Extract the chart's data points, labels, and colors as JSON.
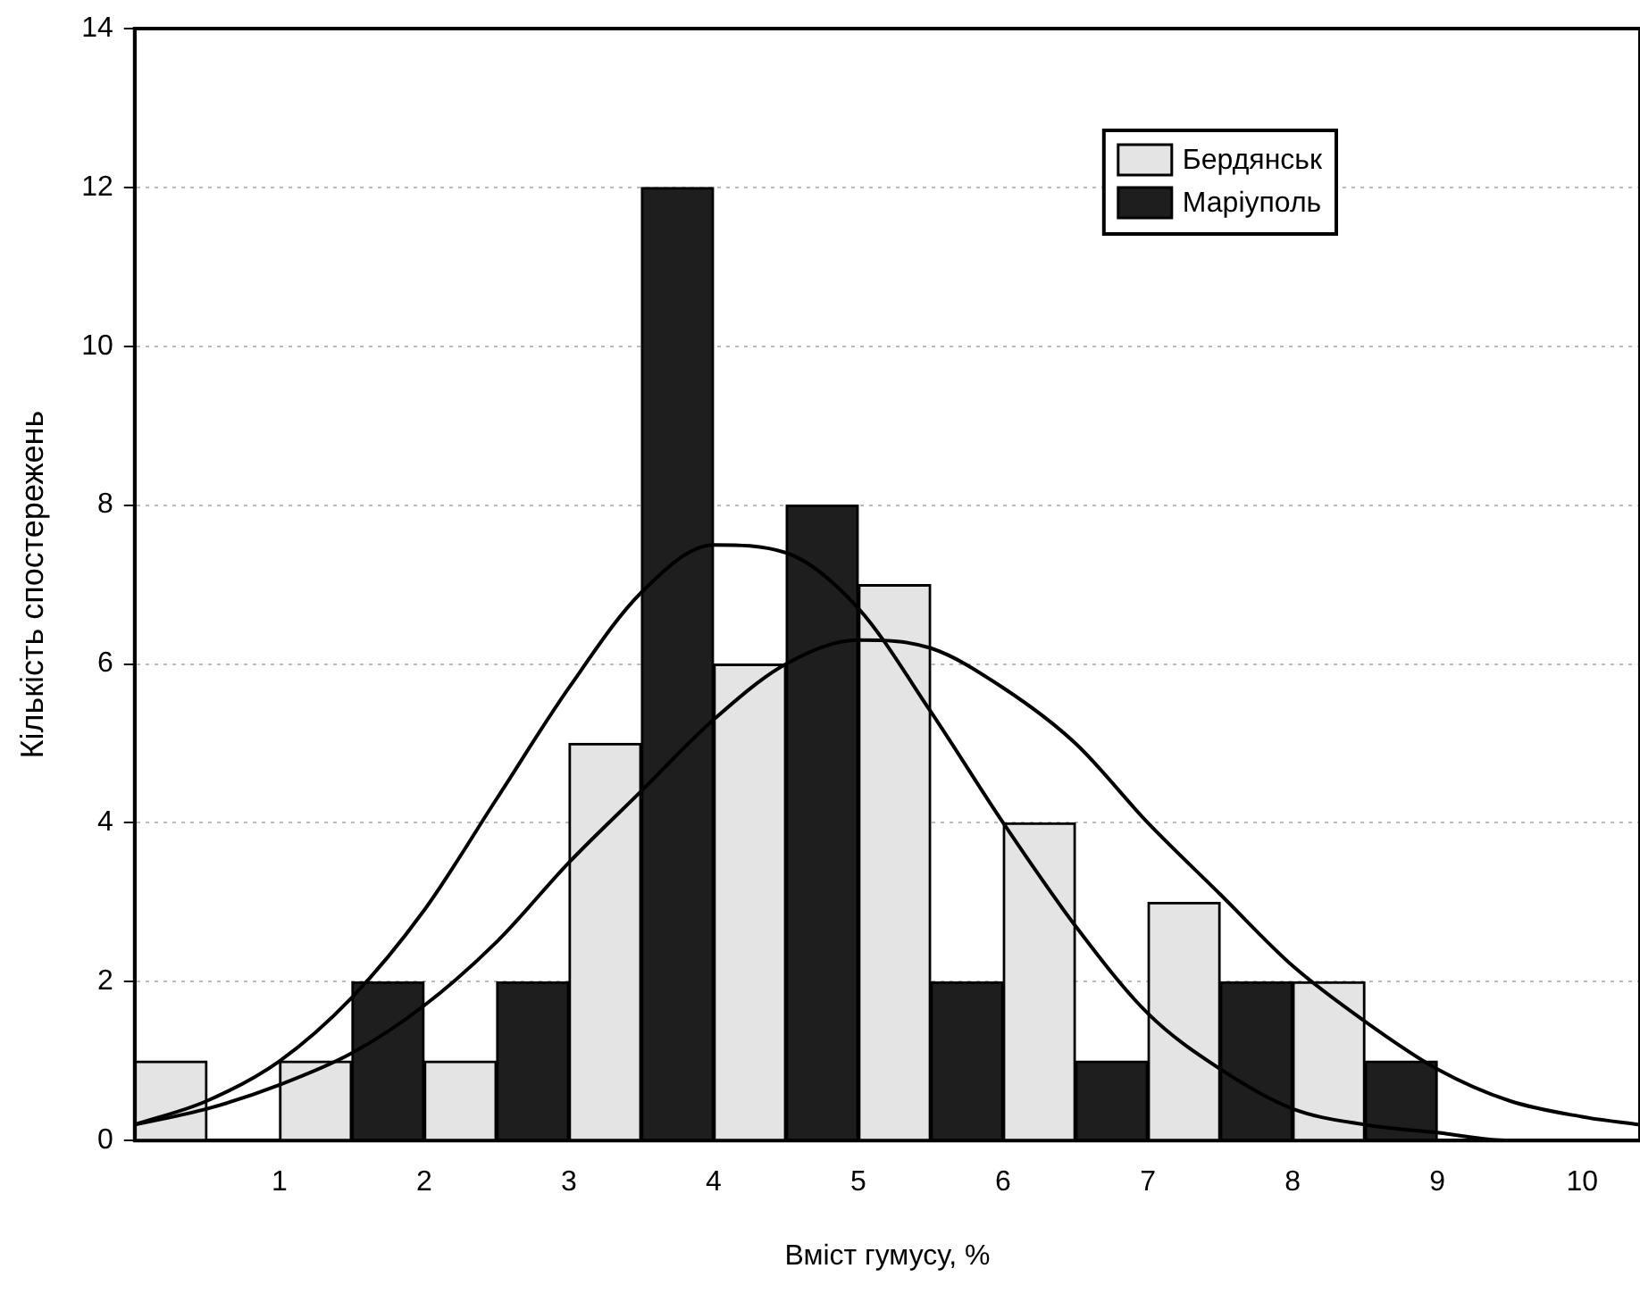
{
  "chart_data": {
    "type": "bar",
    "xlabel": "Вміст гумусу, %",
    "ylabel": "Кількість спостережень",
    "xlim": [
      0,
      10.4
    ],
    "xticks": [
      1,
      2,
      3,
      4,
      5,
      6,
      7,
      8,
      9,
      10
    ],
    "ylim": [
      0,
      14
    ],
    "yticks": [
      0,
      2,
      4,
      6,
      8,
      10,
      12,
      14
    ],
    "grid": "y",
    "legend": "top right",
    "series": [
      {
        "name": "Бердянськ",
        "color": "#e4e4e4",
        "x": [
          0.25,
          1.25,
          2.25,
          3.25,
          4.25,
          5.25,
          6.25,
          7.25,
          8.25
        ],
        "values": [
          1,
          1,
          1,
          5,
          6,
          7,
          4,
          3,
          2
        ]
      },
      {
        "name": "Маріуполь",
        "color": "#1e1e1e",
        "x": [
          1.75,
          2.75,
          3.75,
          4.75,
          5.75,
          6.75,
          7.75,
          8.75
        ],
        "values": [
          2,
          2,
          12,
          8,
          2,
          1,
          2,
          1
        ]
      },
      {
        "type": "line",
        "color": "#000000",
        "marker": "none",
        "x": [
          0,
          0.5,
          1,
          1.5,
          2,
          2.5,
          3,
          3.5,
          4,
          4.5,
          5,
          5.5,
          6,
          6.5,
          7,
          7.5,
          8,
          8.5,
          9,
          9.5,
          10,
          10.4
        ],
        "values": [
          0.2,
          0.4,
          0.7,
          1.1,
          1.7,
          2.5,
          3.5,
          4.4,
          5.3,
          6.0,
          6.3,
          6.2,
          5.7,
          5.0,
          4.0,
          3.1,
          2.2,
          1.5,
          0.9,
          0.5,
          0.3,
          0.2
        ]
      },
      {
        "type": "line",
        "color": "#000000",
        "marker": "none",
        "x": [
          0,
          0.5,
          1,
          1.5,
          2,
          2.5,
          3,
          3.5,
          4,
          4.5,
          5,
          5.5,
          6,
          6.5,
          7,
          7.5,
          8,
          8.5,
          9,
          9.5,
          10,
          10.4
        ],
        "values": [
          0.2,
          0.5,
          1.0,
          1.8,
          2.9,
          4.3,
          5.7,
          6.9,
          7.5,
          7.4,
          6.7,
          5.4,
          4.0,
          2.7,
          1.6,
          0.9,
          0.4,
          0.2,
          0.1,
          0.0,
          0.0,
          0.0
        ]
      }
    ]
  }
}
